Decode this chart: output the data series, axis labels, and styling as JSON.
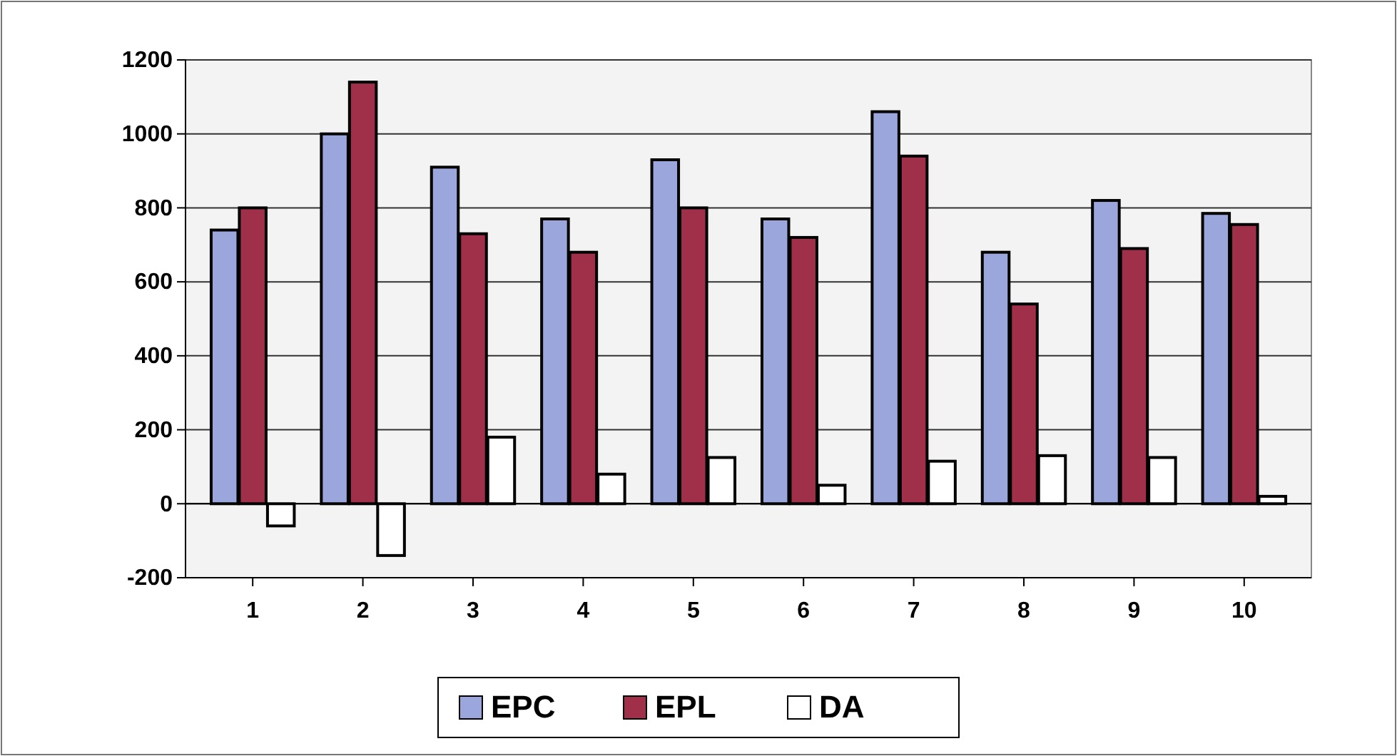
{
  "chart_data": {
    "type": "bar",
    "categories": [
      "1",
      "2",
      "3",
      "4",
      "5",
      "6",
      "7",
      "8",
      "9",
      "10"
    ],
    "series": [
      {
        "name": "EPC",
        "color": "#9ba6dc",
        "values": [
          740,
          1000,
          910,
          770,
          930,
          770,
          1060,
          680,
          820,
          785
        ]
      },
      {
        "name": "EPL",
        "color": "#a0304a",
        "values": [
          800,
          1140,
          730,
          680,
          800,
          720,
          940,
          540,
          690,
          755
        ]
      },
      {
        "name": "DA",
        "color": "#ffffff",
        "values": [
          -60,
          -140,
          180,
          80,
          125,
          50,
          115,
          130,
          125,
          20
        ]
      }
    ],
    "ylim": [
      -200,
      1200
    ],
    "yticks": [
      -200,
      0,
      200,
      400,
      600,
      800,
      1000,
      1200
    ],
    "grid": "y",
    "legend": "bottom"
  }
}
